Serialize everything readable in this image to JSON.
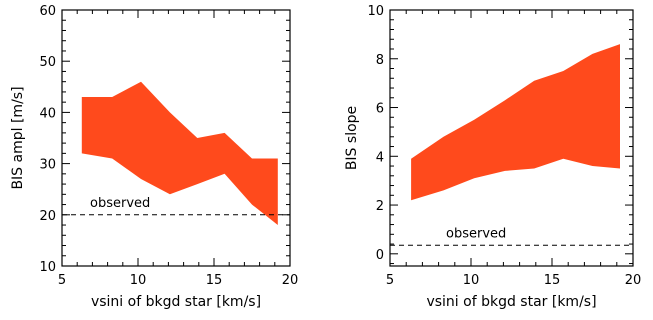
{
  "chart_data": [
    {
      "type": "area",
      "xlabel": "vsini of bkgd star [km/s]",
      "ylabel": "BIS ampl [m/s]",
      "xlim": [
        5,
        20
      ],
      "ylim": [
        10,
        60
      ],
      "xticks": [
        5,
        10,
        15,
        20
      ],
      "yticks": [
        10,
        20,
        30,
        40,
        50,
        60
      ],
      "xtick_labels": [
        "5",
        "10",
        "15",
        "20"
      ],
      "ytick_labels": [
        "10",
        "20",
        "30",
        "40",
        "50",
        "60"
      ],
      "fill_color": "#ff4a1c",
      "series": [
        {
          "x": [
            6.3,
            8.3,
            10.2,
            12.1,
            13.9,
            15.7,
            17.5,
            19.2
          ],
          "upper": [
            43,
            43,
            46,
            40,
            35,
            36,
            31,
            31
          ],
          "lower": [
            32,
            31,
            27,
            24,
            26,
            28,
            22,
            18
          ]
        }
      ],
      "reference_line": {
        "y": 20,
        "label": "observed"
      }
    },
    {
      "type": "area",
      "xlabel": "vsini of bkgd star [km/s]",
      "ylabel": "BIS slope",
      "xlim": [
        5,
        20
      ],
      "ylim": [
        -0.5,
        10
      ],
      "xticks": [
        5,
        10,
        15,
        20
      ],
      "yticks": [
        0,
        2,
        4,
        6,
        8,
        10
      ],
      "xtick_labels": [
        "5",
        "10",
        "15",
        "20"
      ],
      "ytick_labels": [
        "0",
        "2",
        "4",
        "6",
        "8",
        "10"
      ],
      "fill_color": "#ff4a1c",
      "series": [
        {
          "x": [
            6.3,
            8.3,
            10.2,
            12.1,
            13.9,
            15.7,
            17.5,
            19.2
          ],
          "upper": [
            3.9,
            4.8,
            5.5,
            6.3,
            7.1,
            7.5,
            8.2,
            8.6
          ],
          "lower": [
            2.2,
            2.6,
            3.1,
            3.4,
            3.5,
            3.9,
            3.6,
            3.5
          ]
        }
      ],
      "reference_line": {
        "y": 0.35,
        "label": "observed"
      }
    }
  ]
}
